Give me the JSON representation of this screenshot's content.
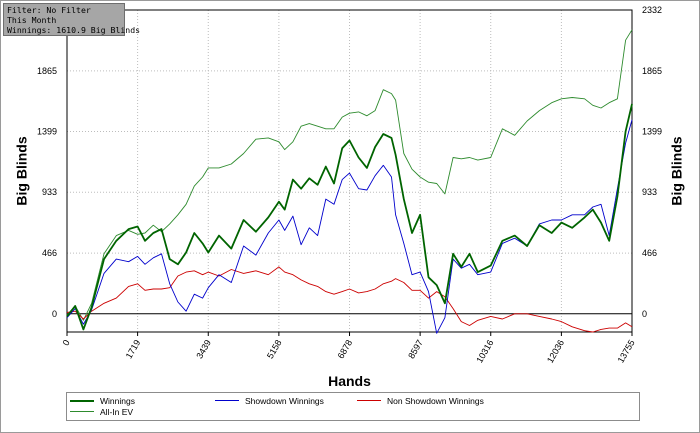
{
  "info_box": {
    "filter": "Filter: No Filter",
    "period": "This Month",
    "winnings": "Winnings: 1610.9 Big Blinds"
  },
  "colors": {
    "winnings": "#006400",
    "showdown": "#0000cc",
    "non_showdown": "#cc0000",
    "all_in_ev": "#2e8b2e",
    "zero_line": "#000000",
    "grid": "#bdbdbd"
  },
  "legend": {
    "items": [
      {
        "label": "Winnings",
        "color": "#006400",
        "width": 2
      },
      {
        "label": "Showdown Winnings",
        "color": "#0000cc",
        "width": 1
      },
      {
        "label": "Non Showdown Winnings",
        "color": "#cc0000",
        "width": 1
      },
      {
        "label": "All-In EV",
        "color": "#2e8b2e",
        "width": 1
      }
    ]
  },
  "chart_data": {
    "type": "line",
    "title": "",
    "xlabel": "Hands",
    "ylabel": "Big Blinds",
    "ylabel_right": "Big Blinds",
    "xlim": [
      0,
      13755
    ],
    "ylim": [
      -140,
      2332
    ],
    "x_ticks": [
      0,
      1719,
      3439,
      5158,
      6878,
      8597,
      10316,
      12036,
      13755
    ],
    "y_ticks": [
      0,
      466,
      933,
      1399,
      1865,
      2332
    ],
    "grid": true,
    "legend_position": "bottom",
    "series": [
      {
        "name": "Winnings",
        "x": [
          0,
          200,
          400,
          600,
          900,
          1200,
          1500,
          1719,
          1900,
          2100,
          2300,
          2500,
          2700,
          2900,
          3100,
          3300,
          3439,
          3700,
          4000,
          4300,
          4600,
          4900,
          5158,
          5300,
          5500,
          5700,
          5900,
          6100,
          6300,
          6500,
          6700,
          6878,
          7100,
          7300,
          7500,
          7700,
          7900,
          8000,
          8200,
          8400,
          8597,
          8800,
          9000,
          9200,
          9400,
          9600,
          9800,
          10000,
          10316,
          10600,
          10900,
          11200,
          11500,
          11800,
          12036,
          12300,
          12600,
          12800,
          13000,
          13200,
          13400,
          13600,
          13755
        ],
        "y": [
          -20,
          60,
          -120,
          50,
          420,
          560,
          650,
          670,
          560,
          620,
          650,
          420,
          380,
          470,
          620,
          540,
          470,
          600,
          500,
          720,
          630,
          740,
          860,
          800,
          1030,
          960,
          1040,
          990,
          1130,
          1000,
          1270,
          1330,
          1200,
          1120,
          1280,
          1380,
          1350,
          1220,
          880,
          620,
          760,
          280,
          220,
          80,
          460,
          360,
          460,
          320,
          370,
          560,
          600,
          520,
          680,
          620,
          700,
          660,
          740,
          800,
          700,
          560,
          900,
          1400,
          1610
        ]
      },
      {
        "name": "Showdown Winnings",
        "x": [
          0,
          200,
          400,
          600,
          900,
          1200,
          1500,
          1719,
          1900,
          2100,
          2300,
          2500,
          2700,
          2900,
          3100,
          3300,
          3439,
          3700,
          4000,
          4300,
          4600,
          4900,
          5158,
          5300,
          5500,
          5700,
          5900,
          6100,
          6300,
          6500,
          6700,
          6878,
          7100,
          7300,
          7500,
          7700,
          7900,
          8000,
          8200,
          8400,
          8597,
          8800,
          9000,
          9200,
          9400,
          9600,
          9800,
          10000,
          10316,
          10600,
          10900,
          11200,
          11500,
          11800,
          12036,
          12300,
          12600,
          12800,
          13000,
          13200,
          13400,
          13600,
          13755
        ],
        "y": [
          -30,
          40,
          -80,
          30,
          310,
          420,
          400,
          440,
          380,
          430,
          460,
          230,
          90,
          20,
          150,
          120,
          200,
          300,
          240,
          520,
          450,
          620,
          720,
          640,
          750,
          530,
          660,
          600,
          880,
          840,
          1030,
          1080,
          960,
          950,
          1060,
          1140,
          1050,
          760,
          540,
          300,
          320,
          170,
          -150,
          -30,
          420,
          350,
          380,
          300,
          320,
          540,
          580,
          520,
          690,
          720,
          720,
          760,
          760,
          820,
          840,
          600,
          960,
          1310,
          1490
        ]
      },
      {
        "name": "Non Showdown Winnings",
        "x": [
          0,
          200,
          400,
          600,
          900,
          1200,
          1500,
          1719,
          1900,
          2100,
          2300,
          2500,
          2700,
          2900,
          3100,
          3300,
          3439,
          3700,
          4000,
          4300,
          4600,
          4900,
          5158,
          5300,
          5500,
          5700,
          5900,
          6100,
          6300,
          6500,
          6700,
          6878,
          7100,
          7300,
          7500,
          7700,
          7900,
          8000,
          8200,
          8400,
          8597,
          8800,
          9000,
          9200,
          9400,
          9600,
          9800,
          10000,
          10316,
          10600,
          10900,
          11200,
          11500,
          11800,
          12036,
          12300,
          12600,
          12800,
          13000,
          13200,
          13400,
          13600,
          13755
        ],
        "y": [
          10,
          20,
          -40,
          20,
          80,
          120,
          210,
          230,
          180,
          190,
          190,
          200,
          290,
          320,
          330,
          300,
          320,
          290,
          340,
          310,
          330,
          300,
          360,
          320,
          300,
          260,
          230,
          210,
          170,
          150,
          170,
          190,
          160,
          170,
          190,
          230,
          250,
          270,
          240,
          180,
          180,
          120,
          170,
          130,
          40,
          -60,
          -90,
          -50,
          -20,
          -40,
          0,
          0,
          -20,
          -40,
          -60,
          -100,
          -130,
          -140,
          -120,
          -110,
          -110,
          -70,
          -100
        ]
      },
      {
        "name": "All-In EV",
        "x": [
          0,
          200,
          400,
          600,
          900,
          1200,
          1500,
          1719,
          1900,
          2100,
          2300,
          2500,
          2700,
          2900,
          3100,
          3300,
          3439,
          3700,
          4000,
          4300,
          4600,
          4900,
          5158,
          5300,
          5500,
          5700,
          5900,
          6100,
          6300,
          6500,
          6700,
          6878,
          7100,
          7300,
          7500,
          7700,
          7900,
          8000,
          8200,
          8400,
          8597,
          8800,
          9000,
          9200,
          9400,
          9600,
          9800,
          10000,
          10316,
          10600,
          10900,
          11200,
          11500,
          11800,
          12036,
          12300,
          12600,
          12800,
          13000,
          13200,
          13400,
          13600,
          13755
        ],
        "y": [
          -10,
          60,
          -50,
          80,
          460,
          600,
          640,
          610,
          620,
          680,
          630,
          690,
          760,
          840,
          980,
          1050,
          1120,
          1120,
          1150,
          1230,
          1340,
          1350,
          1320,
          1260,
          1320,
          1440,
          1460,
          1440,
          1420,
          1420,
          1510,
          1540,
          1550,
          1520,
          1560,
          1720,
          1690,
          1640,
          1230,
          1110,
          1050,
          1010,
          1000,
          920,
          1200,
          1190,
          1200,
          1180,
          1200,
          1420,
          1370,
          1480,
          1560,
          1620,
          1650,
          1660,
          1650,
          1600,
          1580,
          1620,
          1650,
          2100,
          2180
        ]
      }
    ]
  }
}
